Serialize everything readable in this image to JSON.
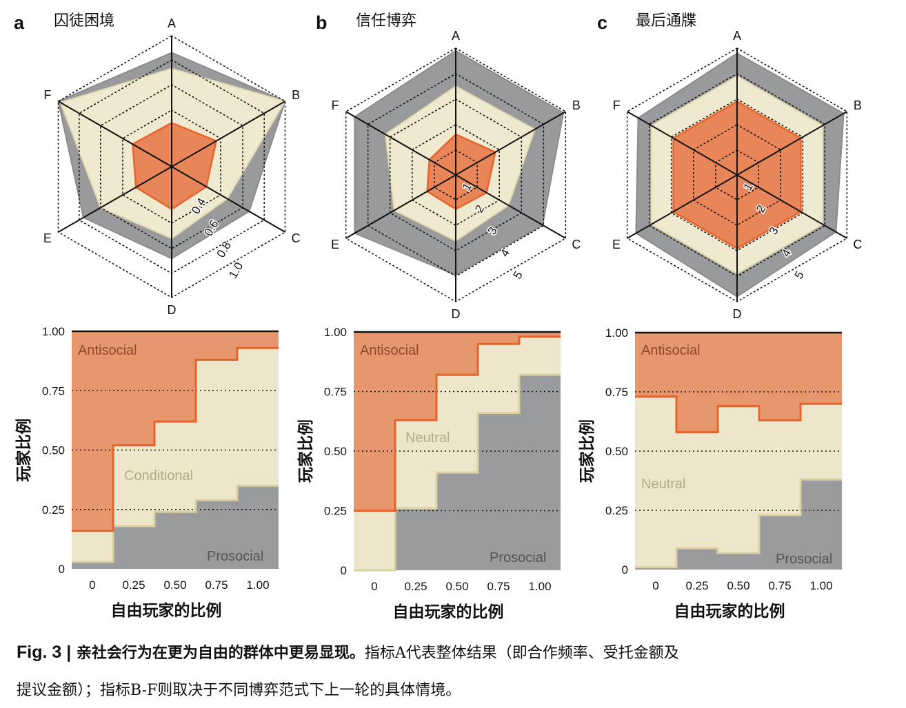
{
  "colors": {
    "antisocial": "#E6976D",
    "antisocial_line": "#E8622C",
    "middle": "#EDE6CA",
    "middle_line": "#DCCFA3",
    "prosocial": "#9A9B9D",
    "prosocial_line": "#85868A",
    "radar_outer": "#999A9C",
    "radar_mid": "#EFE9CF",
    "radar_inner": "#E8865A"
  },
  "panels": [
    {
      "letter": "a",
      "title": "囚徒困境"
    },
    {
      "letter": "b",
      "title": "信任博弈"
    },
    {
      "letter": "c",
      "title": "最后通牒"
    }
  ],
  "caption": {
    "fig_label": "Fig. 3 |",
    "bold_text": " 亲社会行为在更为自由的群体中更易显现。",
    "text_line1": "指标A代表整体结果（即合作频率、受托金额及",
    "text_line2": "提议金额）；指标B-F则取决于不同博弈范式下上一轮的具体情境。"
  },
  "chart_data": [
    {
      "type": "radar",
      "panel": "a",
      "axes": [
        "A",
        "B",
        "C",
        "D",
        "E",
        "F"
      ],
      "scale_ticks": [
        "0.4",
        "0.6",
        "0.8",
        "1.0"
      ],
      "scale_rings": [
        0.4,
        0.6,
        0.8,
        1.0
      ],
      "range": [
        0.2,
        1.0
      ],
      "series": [
        {
          "name": "Prosocial",
          "values": [
            0.86,
            1.0,
            0.66,
            0.68,
            0.76,
            1.0
          ]
        },
        {
          "name": "Conditional",
          "values": [
            0.73,
            1.0,
            0.46,
            0.52,
            0.6,
            0.98
          ]
        },
        {
          "name": "Antisocial",
          "values": [
            0.3,
            0.36,
            0.27,
            0.29,
            0.28,
            0.31
          ]
        }
      ]
    },
    {
      "type": "radar",
      "panel": "b",
      "axes": [
        "A",
        "B",
        "C",
        "D",
        "E",
        "F"
      ],
      "scale_ticks": [
        "1",
        "2",
        "3",
        "4",
        "5"
      ],
      "scale_rings": [
        1,
        2,
        3,
        4,
        5
      ],
      "range": [
        0,
        5
      ],
      "series": [
        {
          "name": "Prosocial",
          "values": [
            4.9,
            4.9,
            3.95,
            3.95,
            4.6,
            4.6
          ]
        },
        {
          "name": "Neutral",
          "values": [
            3.5,
            3.6,
            2.4,
            2.6,
            2.8,
            3.2
          ]
        },
        {
          "name": "Antisocial",
          "values": [
            1.6,
            1.8,
            1.4,
            1.35,
            1.3,
            1.2
          ]
        }
      ]
    },
    {
      "type": "radar",
      "panel": "c",
      "axes": [
        "A",
        "B",
        "C",
        "D",
        "E",
        "F"
      ],
      "scale_ticks": [
        "1",
        "2",
        "3",
        "4",
        "5"
      ],
      "scale_rings": [
        1,
        2,
        3,
        4,
        5
      ],
      "range": [
        0,
        5
      ],
      "series": [
        {
          "name": "Prosocial",
          "values": [
            4.8,
            4.85,
            4.5,
            4.8,
            4.6,
            4.5
          ]
        },
        {
          "name": "Neutral",
          "values": [
            3.9,
            3.9,
            3.9,
            3.9,
            3.9,
            3.9
          ]
        },
        {
          "name": "Antisocial",
          "values": [
            2.9,
            2.9,
            2.9,
            2.9,
            2.9,
            2.9
          ]
        }
      ]
    },
    {
      "type": "area",
      "panel": "a",
      "stacked": true,
      "step": true,
      "xlabel": "自由玩家的比例",
      "ylabel": "玩家比例",
      "x_ticks": [
        "0",
        "0.25",
        "0.50",
        "0.75",
        "1.00"
      ],
      "y_ticks": [
        "0",
        "0.25",
        "0.50",
        "0.75",
        "1.00"
      ],
      "categories": [
        "0",
        "0.25",
        "0.50",
        "0.75",
        "1.00"
      ],
      "ylim": [
        0,
        1
      ],
      "grid": "dotted horizontal at 0.25, 0.50, 0.75",
      "series": [
        {
          "name": "Prosocial",
          "values": [
            0.03,
            0.18,
            0.24,
            0.29,
            0.35
          ]
        },
        {
          "name": "Conditional",
          "values": [
            0.13,
            0.34,
            0.38,
            0.59,
            0.58
          ]
        },
        {
          "name": "Antisocial",
          "values": [
            0.84,
            0.48,
            0.38,
            0.12,
            0.07
          ]
        }
      ]
    },
    {
      "type": "area",
      "panel": "b",
      "stacked": true,
      "step": true,
      "xlabel": "自由玩家的比例",
      "ylabel": "玩家比例",
      "x_ticks": [
        "0",
        "0.25",
        "0.50",
        "0.75",
        "1.00"
      ],
      "y_ticks": [
        "0",
        "0.25",
        "0.50",
        "0.75",
        "1.00"
      ],
      "categories": [
        "0",
        "0.25",
        "0.50",
        "0.75",
        "1.00"
      ],
      "ylim": [
        0,
        1
      ],
      "grid": "dotted horizontal at 0.25, 0.50, 0.75",
      "series": [
        {
          "name": "Prosocial",
          "values": [
            0.0,
            0.26,
            0.41,
            0.66,
            0.82
          ]
        },
        {
          "name": "Neutral",
          "values": [
            0.25,
            0.37,
            0.41,
            0.29,
            0.16
          ]
        },
        {
          "name": "Antisocial",
          "values": [
            0.75,
            0.37,
            0.18,
            0.05,
            0.02
          ]
        }
      ]
    },
    {
      "type": "area",
      "panel": "c",
      "stacked": true,
      "step": true,
      "xlabel": "自由玩家的比例",
      "ylabel": "玩家比例",
      "x_ticks": [
        "0",
        "0.25",
        "0.50",
        "0.75",
        "1.00"
      ],
      "y_ticks": [
        "0",
        "0.25",
        "0.50",
        "0.75",
        "1.00"
      ],
      "categories": [
        "0",
        "0.25",
        "0.50",
        "0.75",
        "1.00"
      ],
      "ylim": [
        0,
        1
      ],
      "grid": "dotted horizontal at 0.25, 0.50, 0.75",
      "series": [
        {
          "name": "Prosocial",
          "values": [
            0.01,
            0.09,
            0.07,
            0.23,
            0.38
          ]
        },
        {
          "name": "Neutral",
          "values": [
            0.72,
            0.49,
            0.62,
            0.4,
            0.32
          ]
        },
        {
          "name": "Antisocial",
          "values": [
            0.27,
            0.42,
            0.31,
            0.37,
            0.3
          ]
        }
      ]
    }
  ]
}
